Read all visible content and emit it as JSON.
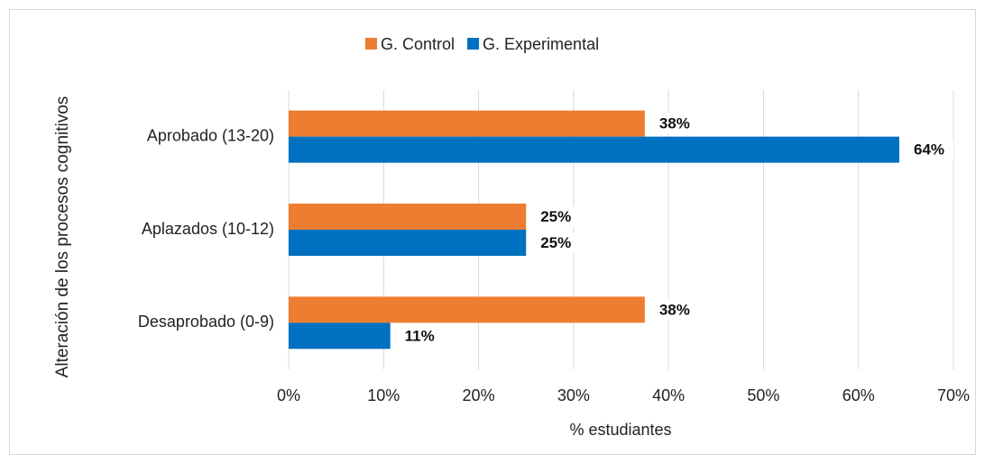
{
  "chart_data": {
    "type": "hbar",
    "categories": [
      "Aprobado (13-20)",
      "Aplazados (10-12)",
      "Desaprobado (0-9)"
    ],
    "series": [
      {
        "name": "G. Control",
        "color": "#ed7d31",
        "values": [
          37.5,
          25,
          37.5
        ],
        "value_labels": [
          "38%",
          "25%",
          "38%"
        ]
      },
      {
        "name": "G. Experimental",
        "color": "#0070c0",
        "values": [
          64.3,
          25,
          10.7
        ],
        "value_labels": [
          "64%",
          "25%",
          "11%"
        ]
      }
    ],
    "xlim": [
      0,
      70
    ],
    "xticks": [
      {
        "value": 0,
        "label": "0%"
      },
      {
        "value": 10,
        "label": "10%"
      },
      {
        "value": 20,
        "label": "20%"
      },
      {
        "value": 30,
        "label": "30%"
      },
      {
        "value": 40,
        "label": "40%"
      },
      {
        "value": 50,
        "label": "50%"
      },
      {
        "value": 60,
        "label": "60%"
      },
      {
        "value": 70,
        "label": "70%"
      }
    ],
    "xlabel": "% estudiantes",
    "ylabel": "Alteración de los procesos cognitivos",
    "grid": true,
    "legend": "top"
  }
}
